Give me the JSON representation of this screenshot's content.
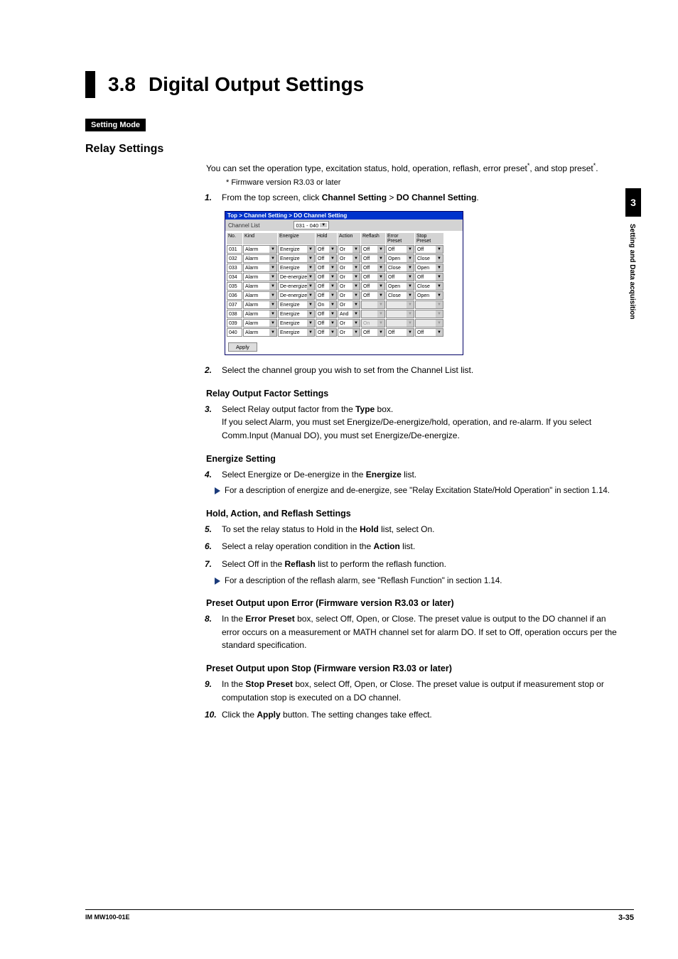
{
  "section": {
    "number": "3.8",
    "title": "Digital Output Settings"
  },
  "badge": "Setting Mode",
  "subheading": "Relay Settings",
  "intro": {
    "line1a": "You can set the operation type, excitation status, hold, operation, reflash, error preset",
    "line1b": ", and stop preset",
    "line1c": ".",
    "footnote": "*   Firmware version R3.03 or later"
  },
  "step1": {
    "num": "1.",
    "a": "From the top screen, click ",
    "b": "Channel Setting",
    "c": " > ",
    "d": "DO Channel Setting",
    "e": "."
  },
  "screenshot": {
    "breadcrumb": "Top > Channel Setting > DO Channel Setting",
    "channel_list_label": "Channel List",
    "range_sel": "031 - 040",
    "headers": [
      "No.",
      "Kind",
      "Energize",
      "Hold",
      "Action",
      "Reflash",
      "Error Preset",
      "Stop Preset"
    ],
    "col_widths": [
      "22px",
      "48px",
      "52px",
      "30px",
      "32px",
      "34px",
      "40px",
      "40px"
    ],
    "rows": [
      {
        "no": "031",
        "kind": "Alarm",
        "energize": "Energize",
        "hold": "Off",
        "action": "Or",
        "reflash": "Off",
        "error": "Off",
        "stop": "Off"
      },
      {
        "no": "032",
        "kind": "Alarm",
        "energize": "Energize",
        "hold": "Off",
        "action": "Or",
        "reflash": "Off",
        "error": "Open",
        "stop": "Close"
      },
      {
        "no": "033",
        "kind": "Alarm",
        "energize": "Energize",
        "hold": "Off",
        "action": "Or",
        "reflash": "Off",
        "error": "Close",
        "stop": "Open"
      },
      {
        "no": "034",
        "kind": "Alarm",
        "energize": "De-energize",
        "hold": "Off",
        "action": "Or",
        "reflash": "Off",
        "error": "Off",
        "stop": "Off"
      },
      {
        "no": "035",
        "kind": "Alarm",
        "energize": "De-energize",
        "hold": "Off",
        "action": "Or",
        "reflash": "Off",
        "error": "Open",
        "stop": "Close"
      },
      {
        "no": "036",
        "kind": "Alarm",
        "energize": "De-energize",
        "hold": "Off",
        "action": "Or",
        "reflash": "Off",
        "error": "Close",
        "stop": "Open"
      },
      {
        "no": "037",
        "kind": "Alarm",
        "energize": "Energize",
        "hold": "On",
        "action": "Or",
        "reflash": "",
        "error": "",
        "stop": "",
        "dis": true
      },
      {
        "no": "038",
        "kind": "Alarm",
        "energize": "Energize",
        "hold": "Off",
        "action": "And",
        "reflash": "",
        "error": "",
        "stop": "",
        "dis": true
      },
      {
        "no": "039",
        "kind": "Alarm",
        "energize": "Energize",
        "hold": "Off",
        "action": "Or",
        "reflash": "On",
        "error": "",
        "stop": "",
        "dis": true
      },
      {
        "no": "040",
        "kind": "Alarm",
        "energize": "Energize",
        "hold": "Off",
        "action": "Or",
        "reflash": "Off",
        "error": "Off",
        "stop": "Off"
      }
    ],
    "apply": "Apply"
  },
  "step2": {
    "num": "2.",
    "text": "Select the channel group you wish to set from the Channel List list."
  },
  "relay_output": {
    "h": "Relay Output Factor Settings",
    "num": "3.",
    "a": "Select Relay output factor from the ",
    "b": "Type",
    "c": " box.",
    "d": "If you select Alarm, you must set Energize/De-energize/hold, operation, and re-alarm. If you select Comm.Input (Manual DO), you must set Energize/De-energize."
  },
  "energize": {
    "h": "Energize Setting",
    "num": "4.",
    "a": "Select Energize or De-energize in the ",
    "b": "Energize",
    "c": " list.",
    "note": "For a description of energize and de-energize, see \"Relay Excitation State/Hold Operation\" in section 1.14."
  },
  "har": {
    "h": "Hold, Action, and Reflash Settings",
    "s5": {
      "num": "5.",
      "a": "To set the relay status to Hold in the ",
      "b": "Hold",
      "c": " list, select On."
    },
    "s6": {
      "num": "6.",
      "a": "Select a relay operation condition in the ",
      "b": "Action",
      "c": " list."
    },
    "s7": {
      "num": "7.",
      "a": "Select Off in the ",
      "b": "Reflash",
      "c": " list to perform the reflash function."
    },
    "note": "For a description of the reflash alarm, see \"Reflash Function\" in section 1.14."
  },
  "preset_error": {
    "h": "Preset Output upon Error (Firmware version R3.03 or later)",
    "num": "8.",
    "a": "In the ",
    "b": "Error Preset",
    "c": " box, select Off, Open, or Close. The preset value is output to the DO channel if an error occurs on a measurement or MATH channel set for alarm DO. If set to Off, operation occurs per the standard specification."
  },
  "preset_stop": {
    "h": "Preset Output upon Stop (Firmware version R3.03 or later)",
    "s9": {
      "num": "9.",
      "a": "In the ",
      "b": "Stop Preset",
      "c": " box, select Off, Open, or Close. The preset value is output if measurement stop or computation stop is executed on a DO channel."
    },
    "s10": {
      "num": "10.",
      "a": "Click the ",
      "b": "Apply",
      "c": " button. The setting changes take effect."
    }
  },
  "sidetab": {
    "chapter": "3",
    "text": "Setting and Data acquisition"
  },
  "footer": {
    "left": "IM MW100-01E",
    "right": "3-35"
  }
}
